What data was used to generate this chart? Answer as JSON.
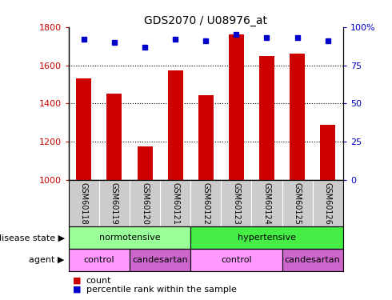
{
  "title": "GDS2070 / U08976_at",
  "samples": [
    "GSM60118",
    "GSM60119",
    "GSM60120",
    "GSM60121",
    "GSM60122",
    "GSM60123",
    "GSM60124",
    "GSM60125",
    "GSM60126"
  ],
  "count_values": [
    1530,
    1450,
    1175,
    1575,
    1445,
    1760,
    1650,
    1660,
    1290
  ],
  "percentile_values": [
    92,
    90,
    87,
    92,
    91,
    95,
    93,
    93,
    91
  ],
  "ylim_left": [
    1000,
    1800
  ],
  "ylim_right": [
    0,
    100
  ],
  "yticks_left": [
    1000,
    1200,
    1400,
    1600,
    1800
  ],
  "yticks_right": [
    0,
    25,
    50,
    75,
    100
  ],
  "yticklabels_right": [
    "0",
    "25",
    "50",
    "75",
    "100%"
  ],
  "bar_color": "#cc0000",
  "dot_color": "#0000cc",
  "bar_width": 0.5,
  "disease_state_groups": [
    {
      "label": "normotensive",
      "start": 0,
      "end": 4,
      "color": "#99ff99"
    },
    {
      "label": "hypertensive",
      "start": 4,
      "end": 9,
      "color": "#44ee44"
    }
  ],
  "agent_groups": [
    {
      "label": "control",
      "start": 0,
      "end": 2,
      "color": "#ff99ff"
    },
    {
      "label": "candesartan",
      "start": 2,
      "end": 4,
      "color": "#cc66cc"
    },
    {
      "label": "control",
      "start": 4,
      "end": 7,
      "color": "#ff99ff"
    },
    {
      "label": "candesartan",
      "start": 7,
      "end": 9,
      "color": "#cc66cc"
    }
  ],
  "disease_state_label": "disease state",
  "agent_label": "agent",
  "legend_count_label": "count",
  "legend_percentile_label": "percentile rank within the sample",
  "background_color": "#ffffff",
  "tick_label_bg": "#cccccc",
  "gridline_ticks": [
    1200,
    1400,
    1600
  ]
}
